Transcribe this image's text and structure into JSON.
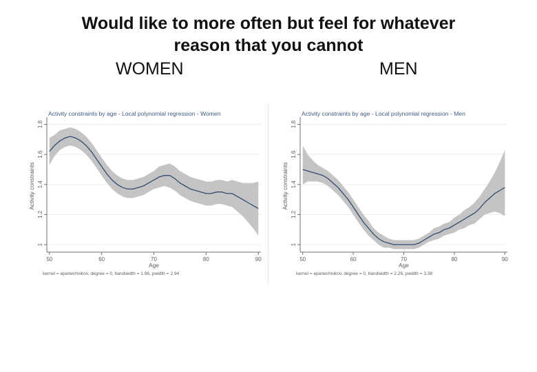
{
  "page": {
    "title_line1": "Would like to more often but feel for whatever",
    "title_line2": "reason that you cannot",
    "women_label": "WOMEN",
    "men_label": "MEN"
  },
  "colors": {
    "line": "#2f4b6e",
    "band": "#c4c4c4",
    "axis": "#6f6f6f",
    "grid": "#e9eef2",
    "text": "#5c5c5c",
    "title_text": "#3d5a80"
  },
  "chart_data": [
    {
      "type": "line",
      "title": "Activity constraints by age - Local polynomial regression - Women",
      "xlabel": "Age",
      "ylabel": "Activity constraints",
      "xlim": [
        49.5,
        90.5
      ],
      "ylim": [
        0.95,
        1.83
      ],
      "xticks": [
        50,
        60,
        70,
        80,
        90
      ],
      "yticks": [
        1,
        1.2,
        1.4,
        1.6,
        1.8
      ],
      "xtick_labels": [
        "50",
        "60",
        "70",
        "80",
        "90"
      ],
      "ytick_labels": [
        "1",
        "1.2",
        "1.4",
        "1.6",
        "1.8"
      ],
      "note": "kernel = epanechnikov, degree = 0, bandwidth = 1.96, pwidth = 2.94",
      "x": [
        50,
        51,
        52,
        53,
        54,
        55,
        56,
        57,
        58,
        59,
        60,
        61,
        62,
        63,
        64,
        65,
        66,
        67,
        68,
        69,
        70,
        71,
        72,
        73,
        74,
        75,
        76,
        77,
        78,
        79,
        80,
        81,
        82,
        83,
        84,
        85,
        86,
        87,
        88,
        89,
        90
      ],
      "estimate": [
        1.62,
        1.66,
        1.69,
        1.71,
        1.72,
        1.71,
        1.69,
        1.66,
        1.62,
        1.57,
        1.52,
        1.47,
        1.43,
        1.4,
        1.38,
        1.37,
        1.37,
        1.38,
        1.39,
        1.41,
        1.43,
        1.45,
        1.46,
        1.46,
        1.44,
        1.41,
        1.39,
        1.37,
        1.36,
        1.35,
        1.34,
        1.34,
        1.35,
        1.35,
        1.34,
        1.34,
        1.32,
        1.3,
        1.28,
        1.26,
        1.24
      ],
      "ci_lower": [
        1.53,
        1.59,
        1.63,
        1.65,
        1.66,
        1.65,
        1.63,
        1.6,
        1.56,
        1.51,
        1.46,
        1.41,
        1.37,
        1.34,
        1.32,
        1.31,
        1.31,
        1.32,
        1.33,
        1.35,
        1.37,
        1.38,
        1.39,
        1.38,
        1.36,
        1.33,
        1.31,
        1.29,
        1.28,
        1.27,
        1.26,
        1.26,
        1.27,
        1.27,
        1.26,
        1.25,
        1.22,
        1.19,
        1.15,
        1.11,
        1.06
      ],
      "ci_upper": [
        1.71,
        1.73,
        1.76,
        1.77,
        1.78,
        1.77,
        1.75,
        1.72,
        1.68,
        1.63,
        1.58,
        1.53,
        1.49,
        1.46,
        1.44,
        1.43,
        1.43,
        1.44,
        1.45,
        1.47,
        1.49,
        1.52,
        1.53,
        1.54,
        1.52,
        1.49,
        1.47,
        1.45,
        1.44,
        1.43,
        1.42,
        1.42,
        1.43,
        1.43,
        1.42,
        1.43,
        1.42,
        1.41,
        1.41,
        1.41,
        1.42
      ]
    },
    {
      "type": "line",
      "title": "Activity constraints by age - Local polynomial regression - Men",
      "xlabel": "Age",
      "ylabel": "Activity constraints",
      "xlim": [
        49.5,
        90.5
      ],
      "ylim": [
        0.95,
        1.83
      ],
      "xticks": [
        50,
        60,
        70,
        80,
        90
      ],
      "yticks": [
        1,
        1.2,
        1.4,
        1.6,
        1.8
      ],
      "xtick_labels": [
        "50",
        "60",
        "70",
        "80",
        "90"
      ],
      "ytick_labels": [
        "1",
        "1.2",
        "1.4",
        "1.6",
        "1.8"
      ],
      "note": "kernel = epanechnikov, degree = 0, bandwidth = 2.26, pwidth = 3.38",
      "x": [
        50,
        51,
        52,
        53,
        54,
        55,
        56,
        57,
        58,
        59,
        60,
        61,
        62,
        63,
        64,
        65,
        66,
        67,
        68,
        69,
        70,
        71,
        72,
        73,
        74,
        75,
        76,
        77,
        78,
        79,
        80,
        81,
        82,
        83,
        84,
        85,
        86,
        87,
        88,
        89,
        90
      ],
      "estimate": [
        1.5,
        1.49,
        1.48,
        1.47,
        1.46,
        1.44,
        1.41,
        1.38,
        1.34,
        1.3,
        1.25,
        1.2,
        1.15,
        1.11,
        1.07,
        1.04,
        1.02,
        1.01,
        1.0,
        1.0,
        1.0,
        1.0,
        1.0,
        1.01,
        1.03,
        1.05,
        1.07,
        1.08,
        1.1,
        1.11,
        1.13,
        1.15,
        1.17,
        1.19,
        1.21,
        1.24,
        1.28,
        1.31,
        1.34,
        1.36,
        1.38
      ],
      "ci_lower": [
        1.4,
        1.42,
        1.42,
        1.42,
        1.41,
        1.39,
        1.36,
        1.33,
        1.29,
        1.25,
        1.2,
        1.15,
        1.1,
        1.06,
        1.03,
        1.0,
        0.98,
        0.98,
        0.97,
        0.97,
        0.97,
        0.97,
        0.97,
        0.98,
        1.0,
        1.02,
        1.03,
        1.04,
        1.06,
        1.07,
        1.08,
        1.1,
        1.11,
        1.13,
        1.14,
        1.17,
        1.2,
        1.21,
        1.22,
        1.21,
        1.19
      ],
      "ci_upper": [
        1.66,
        1.6,
        1.56,
        1.53,
        1.51,
        1.49,
        1.46,
        1.43,
        1.39,
        1.35,
        1.3,
        1.25,
        1.2,
        1.16,
        1.11,
        1.08,
        1.06,
        1.04,
        1.03,
        1.03,
        1.03,
        1.03,
        1.03,
        1.04,
        1.06,
        1.08,
        1.11,
        1.12,
        1.14,
        1.15,
        1.18,
        1.2,
        1.23,
        1.25,
        1.28,
        1.32,
        1.37,
        1.42,
        1.48,
        1.55,
        1.63
      ]
    }
  ]
}
